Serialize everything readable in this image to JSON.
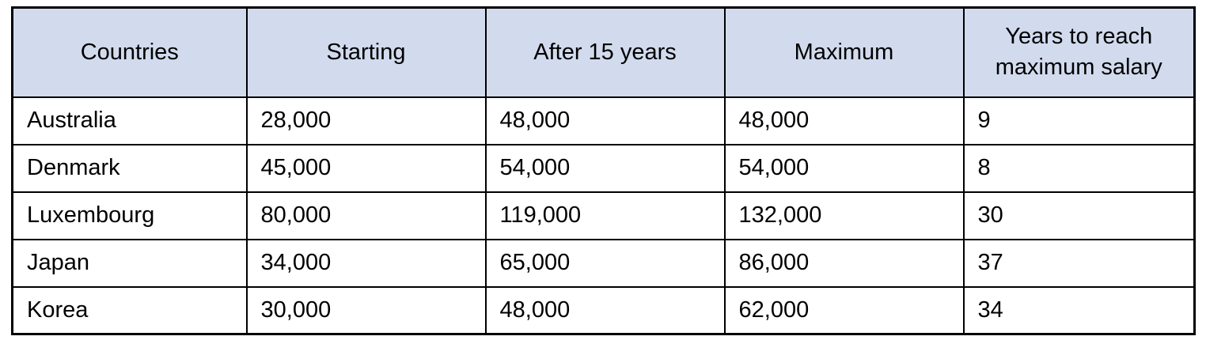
{
  "table": {
    "headers": [
      "Countries",
      "Starting",
      "After 15 years",
      "Maximum",
      "Years to reach maximum salary"
    ],
    "rows": [
      [
        "Australia",
        "28,000",
        "48,000",
        "48,000",
        "9"
      ],
      [
        "Denmark",
        "45,000",
        "54,000",
        "54,000",
        "8"
      ],
      [
        "Luxembourg",
        "80,000",
        "119,000",
        "132,000",
        "30"
      ],
      [
        "Japan",
        "34,000",
        "65,000",
        "86,000",
        "37"
      ],
      [
        "Korea",
        "30,000",
        "48,000",
        "62,000",
        "34"
      ]
    ]
  },
  "colors": {
    "header_background": "#d2dbee",
    "border": "#000000",
    "text": "#000000",
    "cell_background": "#ffffff"
  },
  "chart_data": {
    "type": "table",
    "title": "",
    "columns": [
      "Countries",
      "Starting",
      "After 15 years",
      "Maximum",
      "Years to reach maximum salary"
    ],
    "categories": [
      "Australia",
      "Denmark",
      "Luxembourg",
      "Japan",
      "Korea"
    ],
    "series": [
      {
        "name": "Starting",
        "values": [
          28000,
          45000,
          80000,
          34000,
          30000
        ]
      },
      {
        "name": "After 15 years",
        "values": [
          48000,
          54000,
          119000,
          65000,
          48000
        ]
      },
      {
        "name": "Maximum",
        "values": [
          48000,
          54000,
          132000,
          86000,
          62000
        ]
      },
      {
        "name": "Years to reach maximum salary",
        "values": [
          9,
          8,
          30,
          37,
          34
        ]
      }
    ],
    "layout_hints": {
      "header_fill": "#d2dbee",
      "grid": true,
      "header_align": "center",
      "body_align": "left"
    }
  }
}
